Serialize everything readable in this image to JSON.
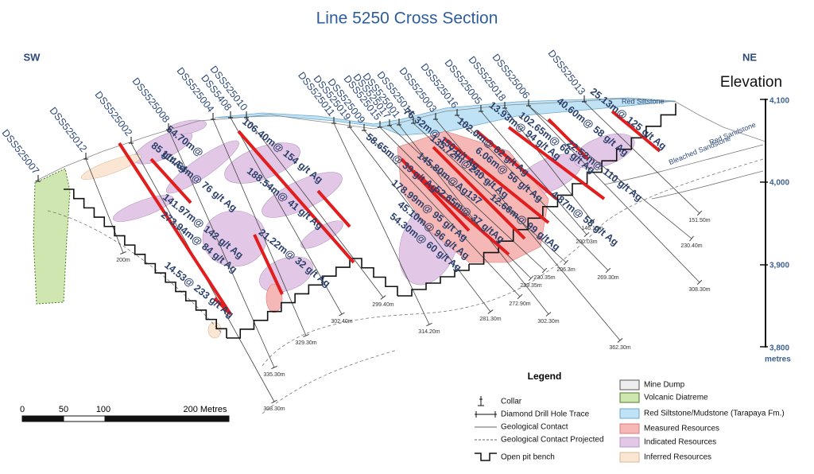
{
  "title": "Line 5250 Cross Section",
  "direction_labels": {
    "sw": "SW",
    "ne": "NE"
  },
  "elevation": {
    "title": "Elevation",
    "ticks": [
      "4,100",
      "4,000",
      "3,900",
      "3,800"
    ],
    "unit": "metres"
  },
  "holes": [
    "DSS525007",
    "DSS525012",
    "DSS525002",
    "DSS525008",
    "DSS525004",
    "DSS5408",
    "DSS525010",
    "DSS525011",
    "DSS525019",
    "DSS525009",
    "DSS525015",
    "DSS525017",
    "DSS525001",
    "DSS525014",
    "DSS525003",
    "DSS525016",
    "DSS525005",
    "DSS525018",
    "DSS525006",
    "DSS525013"
  ],
  "intercepts": [
    "54.70m@",
    "85 g/t Ag",
    "114.64m@ 76 g/t Ag",
    "106.40m@ 154 g/t Ag",
    "188.54m@ 41 g/t Ag",
    "141.97m@ 142 g/t Ag",
    "273.94m@ 84 g/t Ag",
    "21.22m@ 32 g/t Ag",
    "14.53@ 233 g/t Ag",
    "58.65m@ 39 g/t Ag",
    "45.10m@ 96 g/t Ag",
    "54.30m@ 60 g/t Ag",
    "178.99m@ 95 g/t Ag",
    "145.80m@Ag137",
    "52.65m@ 37 g/tAg",
    "135.72m@240 g/t Ag",
    "76.32m@ 150 g/t Ag",
    "13.93m@ 94 g/t Ag",
    "102.0m@ 82 g/t Ag",
    "6.06m@ 56 g/t Ag",
    "12.66m@ 99 g/tAg",
    "102.65m@ 66 g/t Ag",
    "4.87m@ 58 g/t Ag",
    "22.52m@ 110 g/t Ag",
    "40.60m@ 58 g/t Ag",
    "25.13m@ 125 g/t Ag"
  ],
  "depths": [
    "200m",
    "308.30m",
    "335.30m",
    "329.30m",
    "302.40m",
    "299.40m",
    "314.20m",
    "281.30m",
    "272.90m",
    "239.35m",
    "230.35m",
    "302.30m",
    "206.3m",
    "362.30m",
    "269.30m",
    "200.03m",
    "146.15m",
    "230.40m",
    "308.30m",
    "151.50m"
  ],
  "units": [
    "Red Siltstone",
    "Bleached Sandstone",
    "Red Sandstone"
  ],
  "legend": {
    "title": "Legend",
    "items": [
      "Collar",
      "Diamond Drill Hole Trace",
      "Geological Contact",
      "Geological Contact Projected",
      "Open pit bench",
      "Mine Dump",
      "Volcanic Diatreme",
      "Red Siltstone/Mudstone (Tarapaya Fm.)",
      "Measured Resources",
      "Indicated Resources",
      "Inferred Resources"
    ]
  },
  "scale": {
    "ticks": [
      "0",
      "50",
      "100"
    ],
    "label": "200 Metres"
  }
}
